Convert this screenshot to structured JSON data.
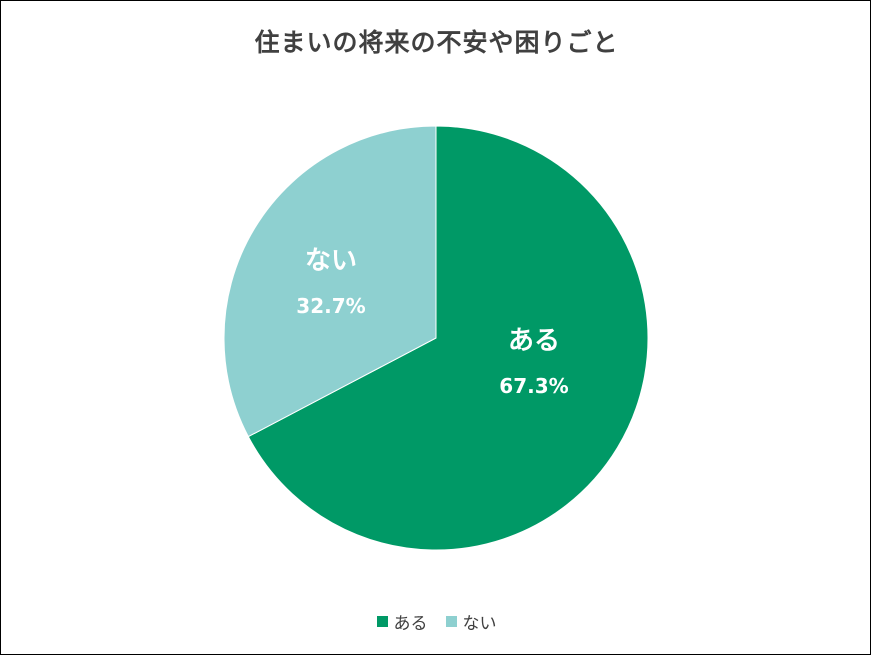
{
  "chart_data": {
    "type": "pie",
    "title": "住まいの将来の不安や困りごと",
    "categories": [
      "ある",
      "ない"
    ],
    "values": [
      67.3,
      32.7
    ],
    "value_labels": [
      "67.3%",
      "32.7%"
    ],
    "colors": [
      "#009966",
      "#8ed0d0"
    ],
    "legend_position": "bottom",
    "start_angle": "12 o'clock",
    "direction": "clockwise"
  }
}
